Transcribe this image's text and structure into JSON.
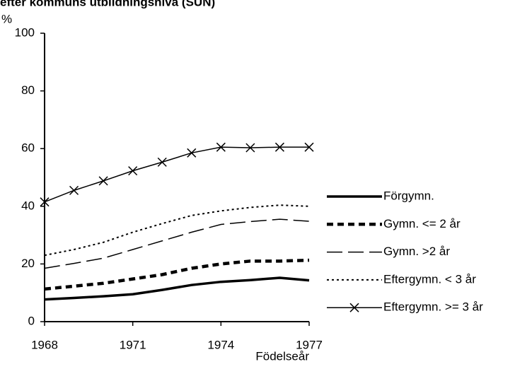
{
  "chart_data": {
    "type": "line",
    "title": "efter kommuns utbildningsnivå (SUN)",
    "ylabel": "%",
    "xlabel": "Födelseår",
    "x": [
      1968,
      1969,
      1970,
      1971,
      1972,
      1973,
      1974,
      1975,
      1976,
      1977
    ],
    "xlim": [
      1968,
      1977
    ],
    "xticks": [
      1968,
      1971,
      1974,
      1977
    ],
    "ylim": [
      0,
      100
    ],
    "yticks": [
      0,
      20,
      40,
      60,
      80,
      100
    ],
    "legend": "right",
    "series": [
      {
        "name": "Förgymn.",
        "color": "#000000",
        "line_style": "thick",
        "values": [
          7.7,
          8.2,
          8.8,
          9.5,
          11,
          12.7,
          13.8,
          14.4,
          15.2,
          14.3
        ]
      },
      {
        "name": "Gymn. <= 2 år",
        "color": "#000000",
        "line_style": "thick-dashed",
        "values": [
          11.3,
          12.3,
          13.3,
          14.8,
          16.3,
          18.5,
          20,
          21,
          21,
          21.3
        ]
      },
      {
        "name": "Gymn.  >2 år",
        "color": "#000000",
        "line_style": "long-dashed",
        "values": [
          18.5,
          20.2,
          22,
          25,
          28,
          31,
          33.7,
          34.7,
          35.5,
          34.8
        ]
      },
      {
        "name": "Eftergymn. < 3 år",
        "color": "#000000",
        "line_style": "dotted",
        "values": [
          23,
          25,
          27.5,
          31,
          34,
          36.8,
          38.4,
          39.6,
          40.4,
          40
        ]
      },
      {
        "name": "Eftergymn. >= 3 år",
        "color": "#000000",
        "line_style": "solid",
        "marker": "x",
        "values": [
          41.5,
          45.5,
          48.8,
          52.3,
          55.3,
          58.5,
          60.5,
          60.3,
          60.5,
          60.5
        ]
      }
    ]
  }
}
